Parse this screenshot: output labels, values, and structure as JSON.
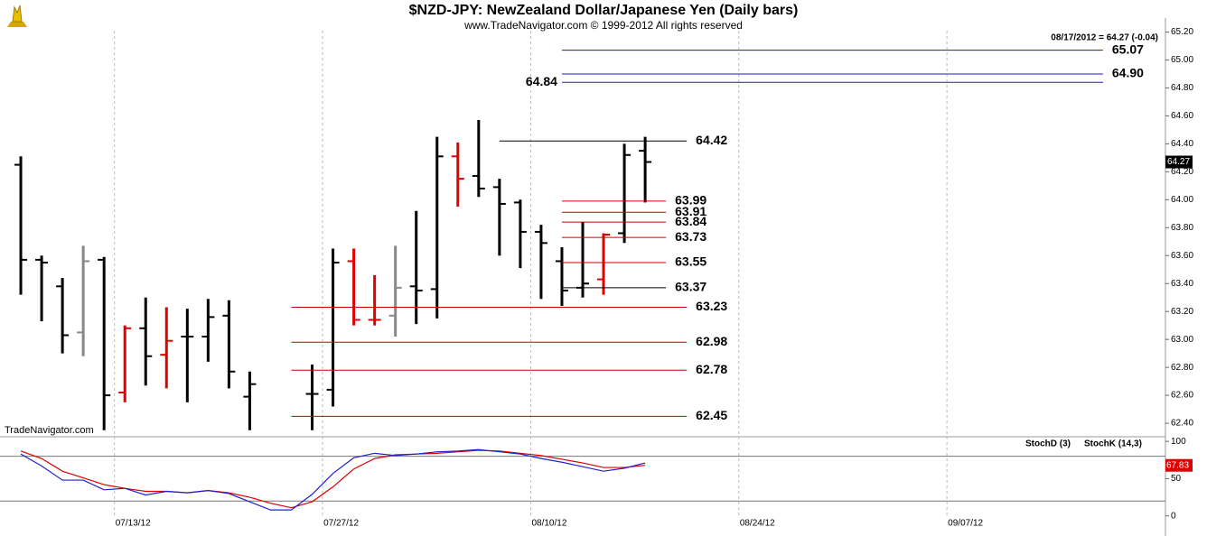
{
  "chart_data": [
    {
      "type": "ohlc",
      "title": "$NZD-JPY:  NewZealand Dollar/Japanese Yen  (Daily bars)",
      "subtitle": "www.TradeNavigator.com © 1999-2012 All rights reserved",
      "watermark": "TradeNavigator.com",
      "annotation": "08/17/2012 = 64.27 (-0.04)",
      "x": [
        "07/06/12",
        "07/09/12",
        "07/10/12",
        "07/11/12",
        "07/12/12",
        "07/13/12",
        "07/16/12",
        "07/17/12",
        "07/18/12",
        "07/19/12",
        "07/20/12",
        "07/23/12",
        "07/24/12",
        "07/25/12",
        "07/26/12",
        "07/27/12",
        "07/30/12",
        "07/31/12",
        "08/01/12",
        "08/02/12",
        "08/03/12",
        "08/06/12",
        "08/07/12",
        "08/08/12",
        "08/09/12",
        "08/10/12",
        "08/13/12",
        "08/14/12",
        "08/15/12",
        "08/16/12",
        "08/17/12"
      ],
      "open": [
        64.25,
        63.57,
        63.38,
        63.05,
        63.57,
        62.62,
        63.08,
        62.89,
        63.02,
        63.02,
        63.17,
        62.59,
        null,
        null,
        62.61,
        62.64,
        63.56,
        63.14,
        63.17,
        63.38,
        63.36,
        64.31,
        64.17,
        64.09,
        63.98,
        63.77,
        63.56,
        63.37,
        63.43,
        63.76,
        64.35
      ],
      "high": [
        64.31,
        63.6,
        63.44,
        63.67,
        63.59,
        63.1,
        63.3,
        63.23,
        63.22,
        63.29,
        63.28,
        62.77,
        null,
        null,
        62.82,
        63.65,
        63.65,
        63.46,
        63.67,
        63.92,
        64.45,
        64.41,
        64.57,
        64.15,
        64.0,
        63.82,
        63.66,
        63.84,
        63.76,
        64.4,
        64.45
      ],
      "low": [
        63.32,
        63.13,
        62.9,
        62.88,
        62.35,
        62.55,
        62.67,
        62.65,
        62.55,
        62.84,
        62.65,
        62.35,
        null,
        null,
        62.35,
        62.52,
        63.1,
        63.1,
        63.02,
        63.11,
        63.15,
        63.95,
        64.02,
        63.6,
        63.51,
        63.29,
        63.24,
        63.3,
        63.32,
        63.69,
        63.98
      ],
      "close": [
        63.57,
        63.55,
        63.03,
        63.56,
        62.6,
        63.08,
        62.88,
        62.99,
        63.02,
        63.16,
        62.77,
        62.68,
        null,
        null,
        62.61,
        63.55,
        63.14,
        63.14,
        63.37,
        63.35,
        64.31,
        64.15,
        64.08,
        63.97,
        63.77,
        63.69,
        63.35,
        63.4,
        63.75,
        64.32,
        64.27
      ],
      "colors": [
        "#000",
        "#000",
        "#000",
        "#888",
        "#000",
        "#e00000",
        "#000",
        "#e00000",
        "#000",
        "#000",
        "#000",
        "#000",
        null,
        null,
        "#000",
        "#000",
        "#e00000",
        "#e00000",
        "#888",
        "#000",
        "#000",
        "#e00000",
        "#000",
        "#000",
        "#000",
        "#000",
        "#000",
        "#000",
        "#e00000",
        "#000",
        "#000"
      ],
      "levels": {
        "values": [
          65.07,
          64.9,
          64.84,
          64.42,
          63.99,
          63.91,
          63.84,
          63.73,
          63.55,
          63.37,
          63.23,
          62.98,
          62.78,
          62.45
        ],
        "value_labels": [
          "65.07",
          "64.90",
          "64.84",
          "64.42",
          "63.99",
          "63.91",
          "63.84",
          "63.73",
          "63.55",
          "63.37",
          "63.23",
          "62.98",
          "62.78",
          "62.45"
        ],
        "colors": [
          "#1a1ad0",
          "#1a1ad0",
          "#1a1ad0",
          "#000",
          "#cc0000",
          "#cc0000",
          "#cc0000",
          "#cc0000",
          "#cc0000",
          "#000",
          "#cc0000",
          "#cc0000",
          "#cc0000",
          "#cc0000"
        ],
        "from": [
          "08/13/12",
          "08/13/12",
          "08/13/12",
          "08/08/12",
          "08/13/12",
          "08/13/12",
          "08/13/12",
          "08/13/12",
          "08/13/12",
          "08/13/12",
          "07/25/12",
          "07/25/12",
          "07/25/12",
          "07/25/12"
        ],
        "to": [
          "09/18/12",
          "09/18/12",
          "09/18/12",
          "08/21/12",
          "08/20/12",
          "08/20/12",
          "08/20/12",
          "08/20/12",
          "08/20/12",
          "08/20/12",
          "08/21/12",
          "08/21/12",
          "08/21/12",
          "08/21/12"
        ],
        "label_side": [
          "right",
          "right",
          "left",
          "right",
          "right",
          "right",
          "right",
          "right",
          "right",
          "right",
          "right",
          "right",
          "right",
          "right"
        ]
      },
      "xlim": [
        "07/05/12",
        "09/21/12"
      ],
      "xticks": [
        "07/13/12",
        "07/27/12",
        "08/10/12",
        "08/24/12",
        "09/07/12"
      ],
      "ylim": [
        62.31,
        65.3
      ],
      "yticks": [
        {
          "value": 62.4,
          "label": "62.40"
        },
        {
          "value": 62.6,
          "label": "62.60"
        },
        {
          "value": 62.8,
          "label": "62.80"
        },
        {
          "value": 63.0,
          "label": "63.00"
        },
        {
          "value": 63.2,
          "label": "63.20"
        },
        {
          "value": 63.4,
          "label": "63.40"
        },
        {
          "value": 63.6,
          "label": "63.60"
        },
        {
          "value": 63.8,
          "label": "63.80"
        },
        {
          "value": 64.0,
          "label": "64.00"
        },
        {
          "value": 64.2,
          "label": "64.20"
        },
        {
          "value": 64.4,
          "label": "64.40"
        },
        {
          "value": 64.6,
          "label": "64.60"
        },
        {
          "value": 64.8,
          "label": "64.80"
        },
        {
          "value": 65.0,
          "label": "65.00"
        },
        {
          "value": 65.2,
          "label": "65.20"
        }
      ]
    },
    {
      "type": "line",
      "x": [
        "07/06/12",
        "07/09/12",
        "07/10/12",
        "07/11/12",
        "07/12/12",
        "07/13/12",
        "07/16/12",
        "07/17/12",
        "07/18/12",
        "07/19/12",
        "07/20/12",
        "07/23/12",
        "07/24/12",
        "07/25/12",
        "07/26/12",
        "07/27/12",
        "07/30/12",
        "07/31/12",
        "08/01/12",
        "08/02/12",
        "08/03/12",
        "08/06/12",
        "08/07/12",
        "08/08/12",
        "08/09/12",
        "08/10/12",
        "08/13/12",
        "08/14/12",
        "08/15/12",
        "08/16/12",
        "08/17/12"
      ],
      "series": [
        {
          "name": "StochD (3)",
          "color": "#e00000",
          "values": [
            87,
            77,
            60,
            51,
            42,
            37,
            33,
            33,
            31,
            34,
            31,
            25,
            17,
            11,
            19,
            39,
            63,
            77,
            82,
            83,
            84,
            86,
            88,
            87,
            84,
            81,
            76,
            71,
            65,
            65,
            67.83
          ]
        },
        {
          "name": "StochK (14,3)",
          "color": "#2020d0",
          "values": [
            83,
            67,
            48,
            48,
            35,
            37,
            28,
            33,
            31,
            34,
            30,
            19,
            8,
            8,
            29,
            57,
            78,
            84,
            81,
            83,
            86,
            87,
            89,
            86,
            83,
            77,
            72,
            66,
            60,
            64,
            71
          ]
        }
      ],
      "bands": [
        20,
        80
      ],
      "ylim": [
        -10,
        105
      ],
      "yticks": [
        0,
        50,
        100
      ]
    }
  ]
}
